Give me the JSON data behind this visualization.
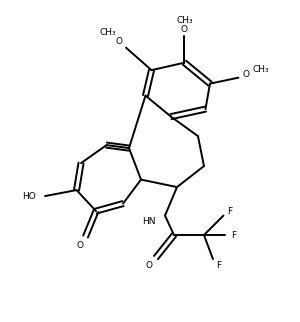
{
  "background_color": "#ffffff",
  "line_color": "#000000",
  "line_width": 1.4,
  "font_size": 6.5,
  "fig_width": 3.0,
  "fig_height": 3.22,
  "dpi": 100,
  "xlim": [
    0,
    10
  ],
  "ylim": [
    0,
    10.74
  ]
}
